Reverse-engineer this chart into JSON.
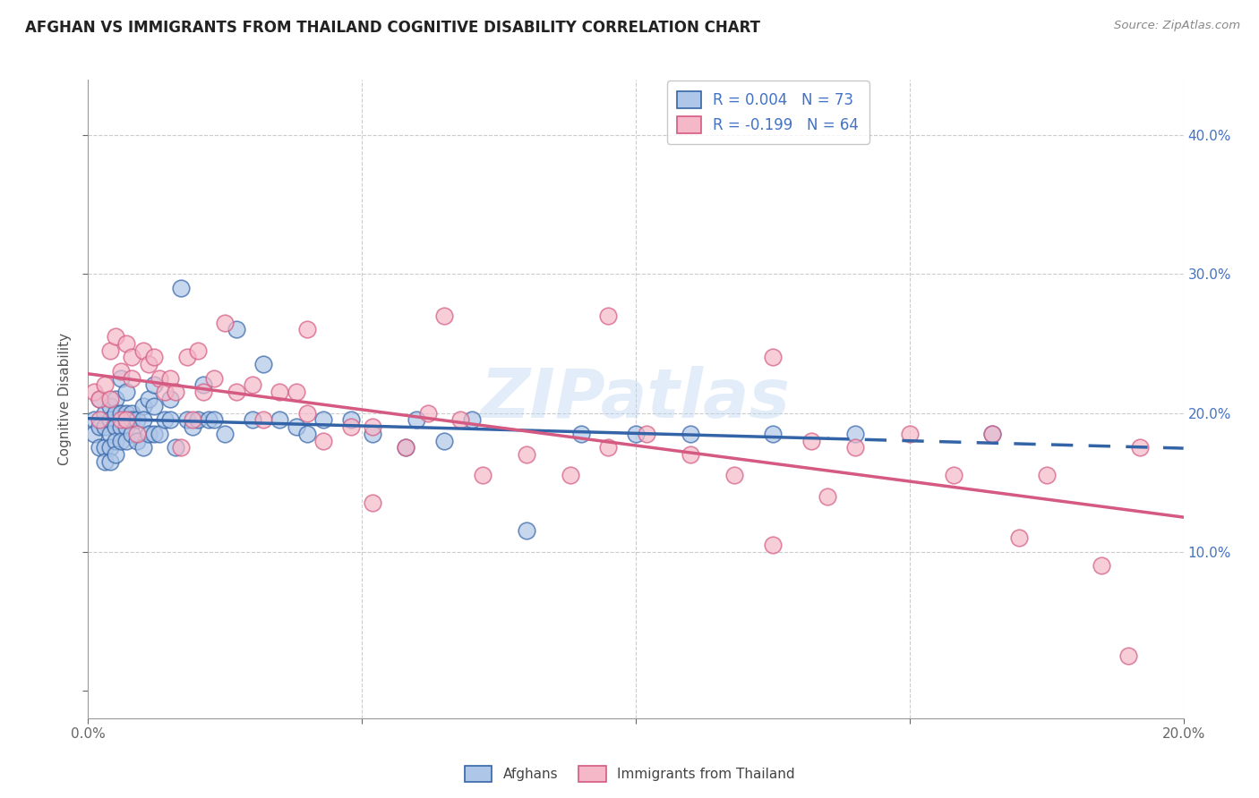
{
  "title": "AFGHAN VS IMMIGRANTS FROM THAILAND COGNITIVE DISABILITY CORRELATION CHART",
  "source": "Source: ZipAtlas.com",
  "ylabel": "Cognitive Disability",
  "legend_labels": [
    "Afghans",
    "Immigrants from Thailand"
  ],
  "R_afghan": 0.004,
  "N_afghan": 73,
  "R_thailand": -0.199,
  "N_thailand": 64,
  "color_afghan": "#aec6e8",
  "color_thailand": "#f4b8c8",
  "line_color_afghan": "#3464a8",
  "line_color_thailand": "#d45a82",
  "xlim": [
    0.0,
    0.2
  ],
  "ylim": [
    -0.02,
    0.44
  ],
  "watermark": "ZIPatlas",
  "afghan_x": [
    0.001,
    0.001,
    0.002,
    0.002,
    0.002,
    0.003,
    0.003,
    0.003,
    0.003,
    0.004,
    0.004,
    0.004,
    0.004,
    0.004,
    0.005,
    0.005,
    0.005,
    0.005,
    0.005,
    0.006,
    0.006,
    0.006,
    0.006,
    0.007,
    0.007,
    0.007,
    0.007,
    0.008,
    0.008,
    0.008,
    0.009,
    0.009,
    0.01,
    0.01,
    0.01,
    0.011,
    0.011,
    0.012,
    0.012,
    0.012,
    0.013,
    0.014,
    0.015,
    0.015,
    0.016,
    0.017,
    0.018,
    0.019,
    0.02,
    0.021,
    0.022,
    0.023,
    0.025,
    0.027,
    0.03,
    0.032,
    0.035,
    0.038,
    0.04,
    0.043,
    0.048,
    0.052,
    0.058,
    0.06,
    0.065,
    0.07,
    0.08,
    0.09,
    0.1,
    0.11,
    0.125,
    0.14,
    0.165
  ],
  "afghan_y": [
    0.195,
    0.185,
    0.21,
    0.19,
    0.175,
    0.2,
    0.19,
    0.175,
    0.165,
    0.205,
    0.195,
    0.185,
    0.175,
    0.165,
    0.21,
    0.2,
    0.19,
    0.18,
    0.17,
    0.225,
    0.2,
    0.19,
    0.18,
    0.215,
    0.2,
    0.19,
    0.18,
    0.2,
    0.195,
    0.185,
    0.195,
    0.18,
    0.205,
    0.195,
    0.175,
    0.21,
    0.185,
    0.22,
    0.205,
    0.185,
    0.185,
    0.195,
    0.21,
    0.195,
    0.175,
    0.29,
    0.195,
    0.19,
    0.195,
    0.22,
    0.195,
    0.195,
    0.185,
    0.26,
    0.195,
    0.235,
    0.195,
    0.19,
    0.185,
    0.195,
    0.195,
    0.185,
    0.175,
    0.195,
    0.18,
    0.195,
    0.115,
    0.185,
    0.185,
    0.185,
    0.185,
    0.185,
    0.185
  ],
  "thailand_x": [
    0.001,
    0.002,
    0.002,
    0.003,
    0.004,
    0.004,
    0.005,
    0.006,
    0.006,
    0.007,
    0.007,
    0.008,
    0.008,
    0.009,
    0.01,
    0.011,
    0.012,
    0.013,
    0.014,
    0.015,
    0.016,
    0.017,
    0.018,
    0.019,
    0.02,
    0.021,
    0.023,
    0.025,
    0.027,
    0.03,
    0.032,
    0.035,
    0.038,
    0.04,
    0.043,
    0.048,
    0.052,
    0.058,
    0.062,
    0.068,
    0.072,
    0.08,
    0.088,
    0.095,
    0.102,
    0.11,
    0.118,
    0.125,
    0.132,
    0.14,
    0.15,
    0.158,
    0.165,
    0.175,
    0.185,
    0.192,
    0.04,
    0.052,
    0.065,
    0.095,
    0.125,
    0.135,
    0.17,
    0.19
  ],
  "thailand_y": [
    0.215,
    0.21,
    0.195,
    0.22,
    0.245,
    0.21,
    0.255,
    0.23,
    0.195,
    0.25,
    0.195,
    0.24,
    0.225,
    0.185,
    0.245,
    0.235,
    0.24,
    0.225,
    0.215,
    0.225,
    0.215,
    0.175,
    0.24,
    0.195,
    0.245,
    0.215,
    0.225,
    0.265,
    0.215,
    0.22,
    0.195,
    0.215,
    0.215,
    0.2,
    0.18,
    0.19,
    0.135,
    0.175,
    0.2,
    0.195,
    0.155,
    0.17,
    0.155,
    0.175,
    0.185,
    0.17,
    0.155,
    0.24,
    0.18,
    0.175,
    0.185,
    0.155,
    0.185,
    0.155,
    0.09,
    0.175,
    0.26,
    0.19,
    0.27,
    0.27,
    0.105,
    0.14,
    0.11,
    0.025
  ]
}
